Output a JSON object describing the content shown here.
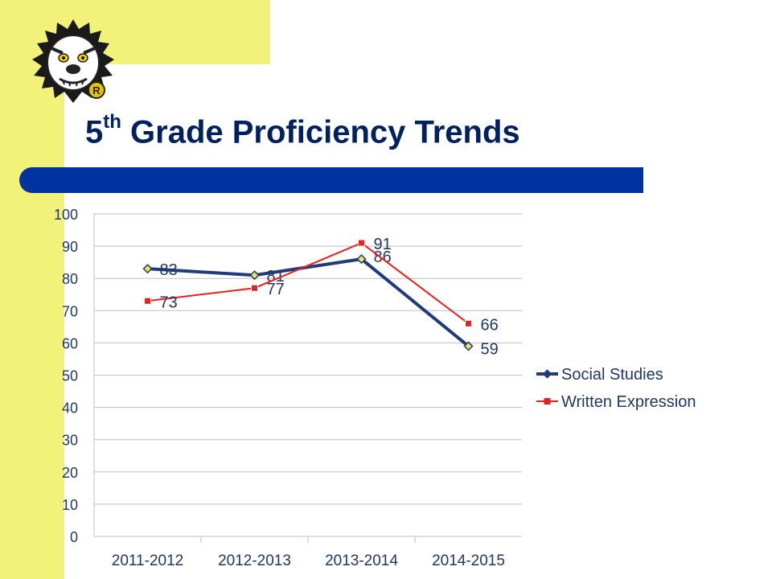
{
  "slide": {
    "title_main": "5",
    "title_sup": "th",
    "title_rest": " Grade Proficiency Trends"
  },
  "colors": {
    "accent": "#f2f27a",
    "title": "#002060",
    "bar": "#0033a0",
    "gridline": "#bfbfbf",
    "tick_text": "#1f3864"
  },
  "logo": {
    "icon": "bulldog-mascot-icon",
    "badge_letter": "R"
  },
  "chart_data": {
    "type": "line",
    "categories": [
      "2011-2012",
      "2012-2013",
      "2013-2014",
      "2014-2015"
    ],
    "ylim": [
      0,
      100
    ],
    "yticks": [
      0,
      10,
      20,
      30,
      40,
      50,
      60,
      70,
      80,
      90,
      100
    ],
    "grid": true,
    "legend_position": "right",
    "series": [
      {
        "name": "Social Studies",
        "values": [
          83,
          81,
          86,
          59
        ],
        "color": "#1f3b7a",
        "marker": "diamond"
      },
      {
        "name": "Written Expression",
        "values": [
          73,
          77,
          91,
          66
        ],
        "color": "#e8201e",
        "marker": "square"
      }
    ]
  }
}
